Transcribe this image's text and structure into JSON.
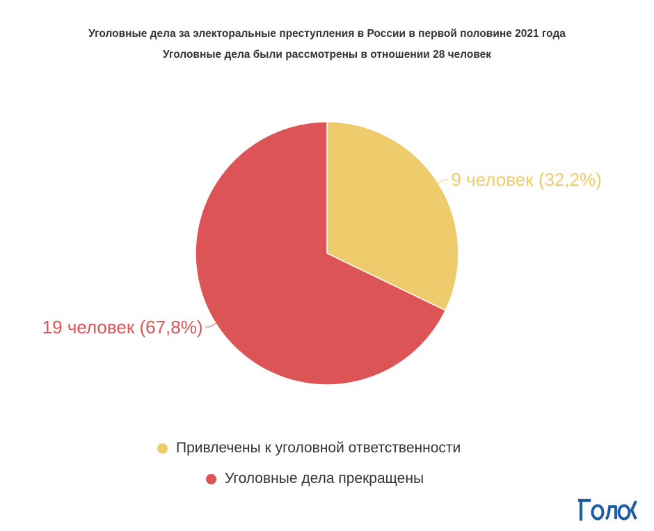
{
  "title_line1": "Уголовные дела за электоральные преступления в России в первой половине 2021 года",
  "title_line2": "Уголовные дела были рассмотрены в отношении 28 человек",
  "chart_data": {
    "type": "pie",
    "title": "Уголовные дела за электоральные преступления в России в первой половине 2021 года",
    "subtitle": "Уголовные дела были рассмотрены в отношении 28 человек",
    "slices": [
      {
        "name": "Привлечены к уголовной ответственности",
        "value": 9,
        "label": "9 человек (32,2%)",
        "color": "#EECB6B"
      },
      {
        "name": "Уголовные дела прекращены",
        "value": 19,
        "label": "19 человек (67,8%)",
        "color": "#DC5456"
      }
    ],
    "legend_position": "bottom"
  },
  "logo_text": "Голос",
  "colors": {
    "text": "#333333",
    "logo": "#1f5ca8"
  }
}
